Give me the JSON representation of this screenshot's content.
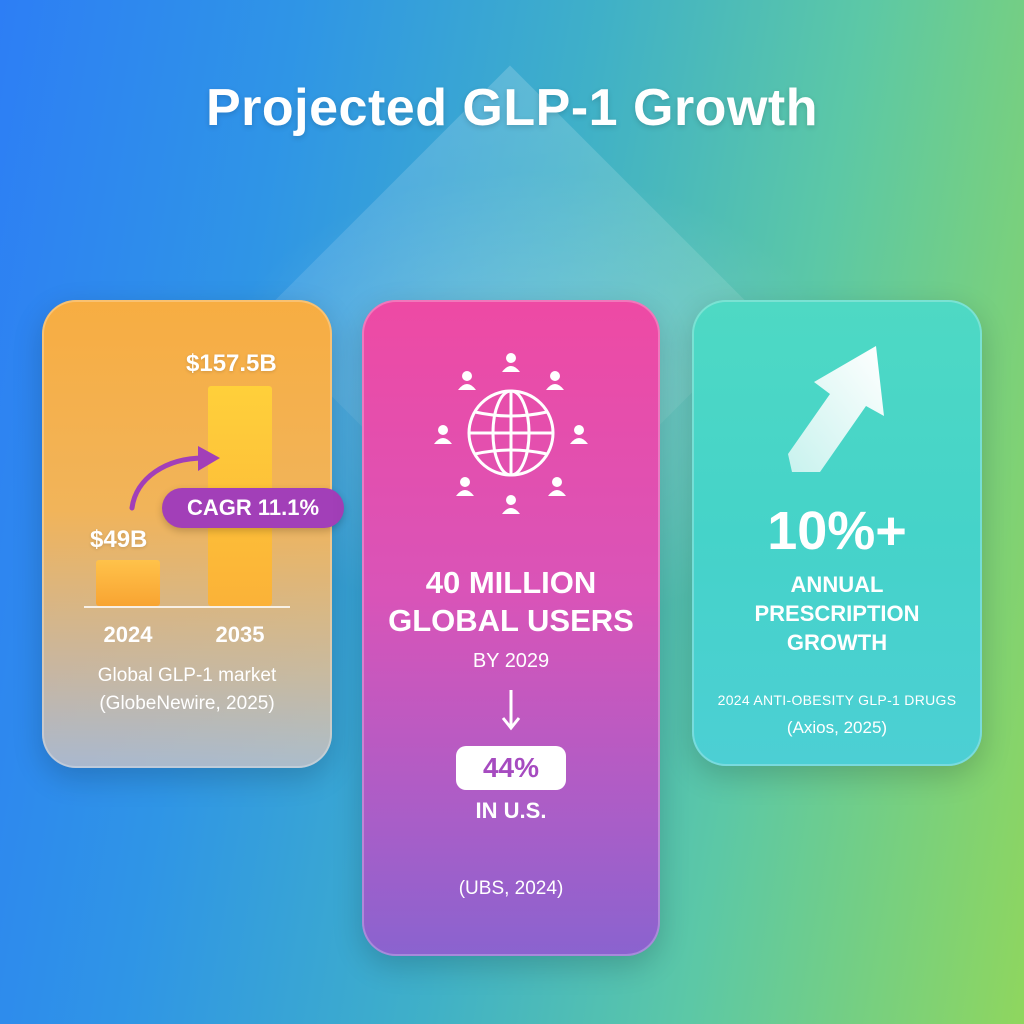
{
  "title": "Projected GLP-1 Growth",
  "market_card": {
    "value_2024": "$49B",
    "value_2035": "$157.5B",
    "cagr": "CAGR 11.1%",
    "year_2024": "2024",
    "year_2035": "2035",
    "caption_line1": "Global GLP-1 market",
    "caption_line2": "(GlobeNewire, 2025)"
  },
  "chart_data": {
    "type": "bar",
    "categories": [
      "2024",
      "2035"
    ],
    "values": [
      49,
      157.5
    ],
    "title": "",
    "xlabel": "",
    "ylabel": "",
    "annotations": [
      "CAGR 11.1%"
    ]
  },
  "users_card": {
    "headline_line1": "40 MILLION",
    "headline_line2": "GLOBAL USERS",
    "by_year": "BY 2029",
    "us_share": "44%",
    "us_label": "IN U.S.",
    "source": "(UBS, 2024)",
    "icon": "globe-users-icon"
  },
  "rx_card": {
    "big_value": "10%+",
    "label_line1": "ANNUAL",
    "label_line2": "PRESCRIPTION",
    "label_line3": "GROWTH",
    "subtitle": "2024 ANTI-OBESITY GLP-1 DRUGS",
    "source": "(Axios, 2025)",
    "icon": "up-arrow-icon"
  },
  "colors": {
    "orange_card": "#f7ad42",
    "pink_card": "#ee4aa4",
    "teal_card": "#4ed9c4",
    "cagr_pill": "#a23fb8"
  }
}
